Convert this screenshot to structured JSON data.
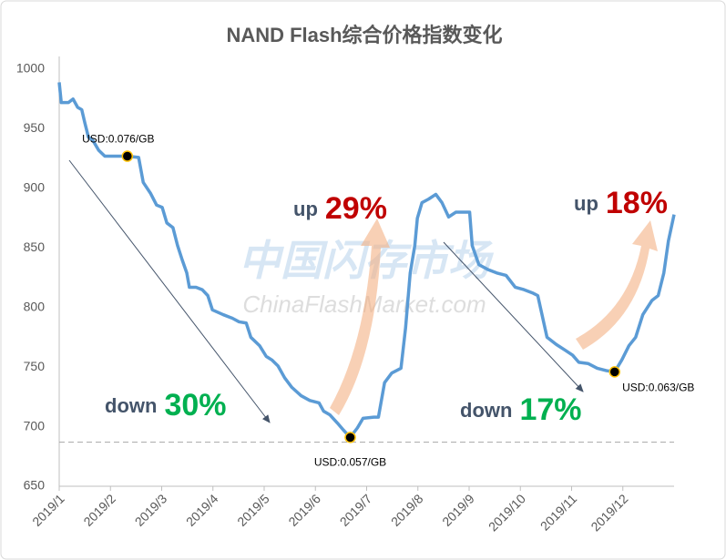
{
  "chart_data": {
    "type": "line",
    "title": "NAND Flash综合价格指数变化",
    "watermark": [
      "中国闪存市场",
      "ChinaFlashMarket.com"
    ],
    "color": "#5b9bd5",
    "xlim": [
      0,
      12
    ],
    "xticks": [
      {
        "value": 0,
        "label": "2019/1"
      },
      {
        "value": 1,
        "label": "2019/2"
      },
      {
        "value": 2,
        "label": "2019/3"
      },
      {
        "value": 3,
        "label": "2019/4"
      },
      {
        "value": 4,
        "label": "2019/5"
      },
      {
        "value": 5,
        "label": "2019/6"
      },
      {
        "value": 6,
        "label": "2019/7"
      },
      {
        "value": 7,
        "label": "2019/8"
      },
      {
        "value": 8,
        "label": "2019/9"
      },
      {
        "value": 9,
        "label": "2019/10"
      },
      {
        "value": 10,
        "label": "2019/11"
      },
      {
        "value": 11,
        "label": "2019/12"
      }
    ],
    "ylim": [
      650,
      1000
    ],
    "yticks": [
      650,
      700,
      750,
      800,
      850,
      900,
      950,
      1000
    ],
    "grid": false,
    "x": [
      0,
      0.04,
      0.18,
      0.27,
      0.36,
      0.44,
      0.5,
      0.57,
      0.66,
      0.77,
      0.89,
      1.16,
      1.33,
      1.55,
      1.64,
      1.78,
      1.9,
      2.01,
      2.1,
      2.22,
      2.31,
      2.4,
      2.49,
      2.54,
      2.67,
      2.79,
      2.9,
      2.99,
      3.2,
      3.38,
      3.51,
      3.65,
      3.74,
      3.91,
      4.04,
      4.15,
      4.27,
      4.4,
      4.54,
      4.72,
      4.89,
      5.07,
      5.16,
      5.28,
      5.43,
      5.55,
      5.68,
      5.82,
      5.93,
      6.14,
      6.23,
      6.35,
      6.49,
      6.67,
      6.76,
      6.85,
      6.94,
      6.99,
      7.08,
      7.21,
      7.35,
      7.47,
      7.6,
      7.74,
      8.01,
      8.06,
      8.19,
      8.36,
      8.54,
      8.72,
      8.9,
      9.07,
      9.25,
      9.34,
      9.52,
      9.7,
      9.88,
      10.02,
      10.14,
      10.32,
      10.5,
      10.68,
      10.84,
      10.98,
      11.12,
      11.25,
      11.39,
      11.57,
      11.69,
      11.8,
      11.89,
      12
    ],
    "values": [
      989,
      972,
      972,
      975,
      968,
      966,
      955,
      943,
      940,
      932,
      927,
      927,
      927,
      926,
      905,
      896,
      886,
      884,
      871,
      867,
      852,
      840,
      829,
      817,
      817,
      815,
      810,
      798,
      794,
      791,
      788,
      787,
      775,
      768,
      759,
      756,
      751,
      741,
      733,
      726,
      722,
      720,
      713,
      710,
      703,
      697,
      691,
      699,
      707,
      708,
      708,
      737,
      745,
      749,
      783,
      829,
      852,
      875,
      888,
      891,
      895,
      888,
      876,
      880,
      880,
      852,
      836,
      832,
      829,
      827,
      817,
      815,
      812,
      810,
      775,
      769,
      764,
      760,
      754,
      753,
      749,
      747,
      746,
      756,
      768,
      775,
      794,
      806,
      810,
      829,
      856,
      878
    ],
    "reference_line": 687,
    "points": [
      {
        "x": 1.33,
        "y": 927,
        "label": "USD:0.076/GB"
      },
      {
        "x": 5.68,
        "y": 691,
        "label": "USD:0.057/GB"
      },
      {
        "x": 10.84,
        "y": 746,
        "label": "USD:0.063/GB"
      }
    ],
    "annotations": [
      {
        "direction": "down",
        "change": "30%",
        "color": "#00b050"
      },
      {
        "direction": "up",
        "change": "29%",
        "color": "#c00000"
      },
      {
        "direction": "down",
        "change": "17%",
        "color": "#00b050"
      },
      {
        "direction": "up",
        "change": "18%",
        "color": "#c00000"
      }
    ]
  }
}
